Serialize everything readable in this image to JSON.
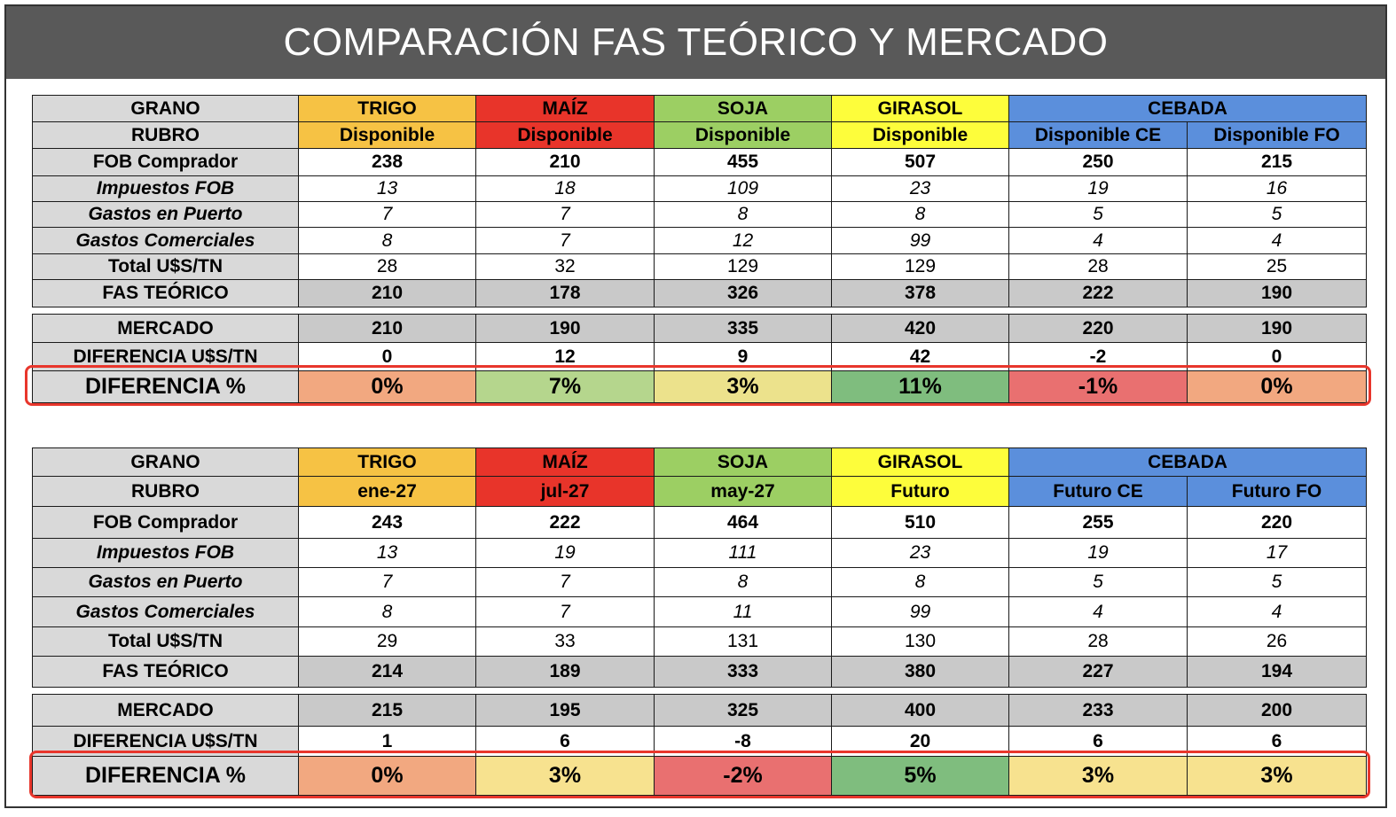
{
  "title": "COMPARACIÓN FAS TEÓRICO Y MERCADO",
  "row_labels": {
    "grano": "GRANO",
    "rubro": "RUBRO",
    "fob": "FOB Comprador",
    "impuestos": "Impuestos FOB",
    "puerto": "Gastos en Puerto",
    "comerciales": "Gastos Comerciales",
    "total": "Total U$S/TN",
    "fas": "FAS TEÓRICO",
    "mercado": "MERCADO",
    "dif": "DIFERENCIA U$S/TN",
    "pct": "DIFERENCIA %"
  },
  "grains": {
    "trigo": "TRIGO",
    "maiz": "MAÍZ",
    "soja": "SOJA",
    "girasol": "GIRASOL",
    "cebada": "CEBADA"
  },
  "colors": {
    "trigo": "#f6c244",
    "maiz": "#e8342a",
    "soja": "#9ccf63",
    "girasol": "#fdfd3b",
    "cebada": "#5b8fdc",
    "highlight": "#e8362c"
  },
  "tables": [
    {
      "rubro": [
        "Disponible",
        "Disponible",
        "Disponible",
        "Disponible",
        "Disponible CE",
        "Disponible FO"
      ],
      "fob": [
        "238",
        "210",
        "455",
        "507",
        "250",
        "215"
      ],
      "impuestos": [
        "13",
        "18",
        "109",
        "23",
        "19",
        "16"
      ],
      "puerto": [
        "7",
        "7",
        "8",
        "8",
        "5",
        "5"
      ],
      "comerciales": [
        "8",
        "7",
        "12",
        "99",
        "4",
        "4"
      ],
      "total": [
        "28",
        "32",
        "129",
        "129",
        "28",
        "25"
      ],
      "fas": [
        "210",
        "178",
        "326",
        "378",
        "222",
        "190"
      ],
      "mercado": [
        "210",
        "190",
        "335",
        "420",
        "220",
        "190"
      ],
      "dif": [
        "0",
        "12",
        "9",
        "42",
        "-2",
        "0"
      ],
      "pct": [
        "0%",
        "7%",
        "3%",
        "11%",
        "-1%",
        "0%"
      ],
      "pct_colors": [
        "#f2a880",
        "#b5d68d",
        "#ece28c",
        "#7fbd7e",
        "#e97070",
        "#f2a880"
      ]
    },
    {
      "rubro": [
        "ene-27",
        "jul-27",
        "may-27",
        "Futuro",
        "Futuro CE",
        "Futuro FO"
      ],
      "fob": [
        "243",
        "222",
        "464",
        "510",
        "255",
        "220"
      ],
      "impuestos": [
        "13",
        "19",
        "111",
        "23",
        "19",
        "17"
      ],
      "puerto": [
        "7",
        "7",
        "8",
        "8",
        "5",
        "5"
      ],
      "comerciales": [
        "8",
        "7",
        "11",
        "99",
        "4",
        "4"
      ],
      "total": [
        "29",
        "33",
        "131",
        "130",
        "28",
        "26"
      ],
      "fas": [
        "214",
        "189",
        "333",
        "380",
        "227",
        "194"
      ],
      "mercado": [
        "215",
        "195",
        "325",
        "400",
        "233",
        "200"
      ],
      "dif": [
        "1",
        "6",
        "-8",
        "20",
        "6",
        "6"
      ],
      "pct": [
        "0%",
        "3%",
        "-2%",
        "5%",
        "3%",
        "3%"
      ],
      "pct_colors": [
        "#f2a880",
        "#f7e28f",
        "#e97070",
        "#7fbd7e",
        "#f7e28f",
        "#f7e28f"
      ]
    }
  ]
}
